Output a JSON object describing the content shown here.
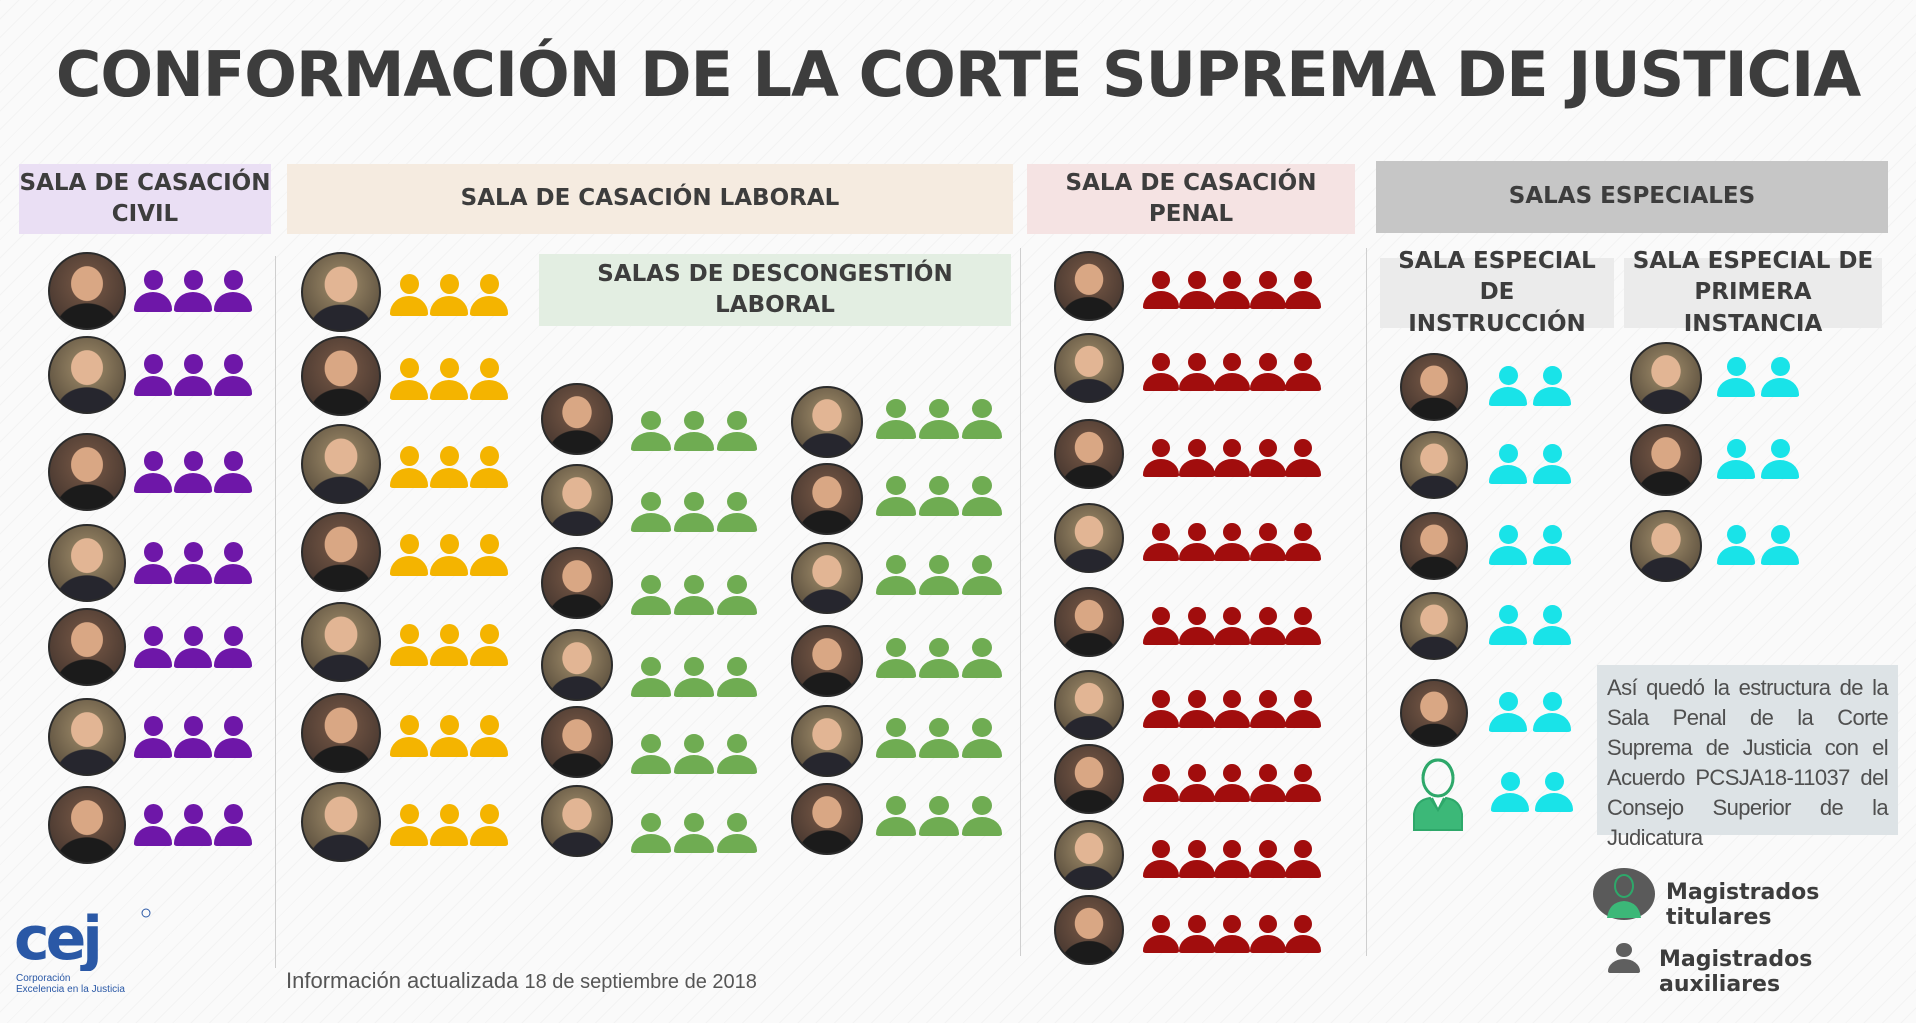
{
  "title": "CONFORMACIÓN DE LA CORTE SUPREMA DE JUSTICIA",
  "sections": {
    "civil": {
      "label_line1": "SALA DE CASACIÓN",
      "label_line2": "CIVIL",
      "color": "#6e17a8",
      "header_bg": "#eadff4"
    },
    "laboral": {
      "label": "SALA DE CASACIÓN LABORAL",
      "color": "#f4b400",
      "header_bg": "#f5ebe0"
    },
    "descongestion": {
      "label_line1": "SALAS DE DESCONGESTIÓN",
      "label_line2": "LABORAL",
      "color": "#6fac52",
      "header_bg": "#e3eee2"
    },
    "penal": {
      "label": "SALA DE CASACIÓN PENAL",
      "color": "#a10d0d",
      "header_bg": "#f5e3e3"
    },
    "especiales": {
      "label": "SALAS ESPECIALES",
      "header_bg": "#c6c6c6"
    },
    "instruccion": {
      "label_line1": "SALA ESPECIAL DE",
      "label_line2": "INSTRUCCIÓN",
      "color": "#19e3e8",
      "header_bg": "#ebebeb"
    },
    "primera_instancia": {
      "label_line1": "SALA ESPECIAL DE",
      "label_line2": "PRIMERA INSTANCIA",
      "color": "#19e3e8",
      "header_bg": "#ebebeb"
    }
  },
  "note": "Así quedó la estructura de la Sala Penal de la Corte Suprema de Justicia con el Acuerdo PCSJA18-11037 del Consejo Superior de la Judicatura",
  "legend": {
    "titulares": "Magistrados titulares",
    "auxiliares": "Magistrados auxiliares"
  },
  "footer": {
    "prefix": "Información actualizada",
    "date": "18 de septiembre de 2018"
  },
  "logo": {
    "mark": "cej",
    "line1": "Corporación",
    "line2": "Excelencia en la Justicia",
    "color": "#2a58a6"
  }
}
